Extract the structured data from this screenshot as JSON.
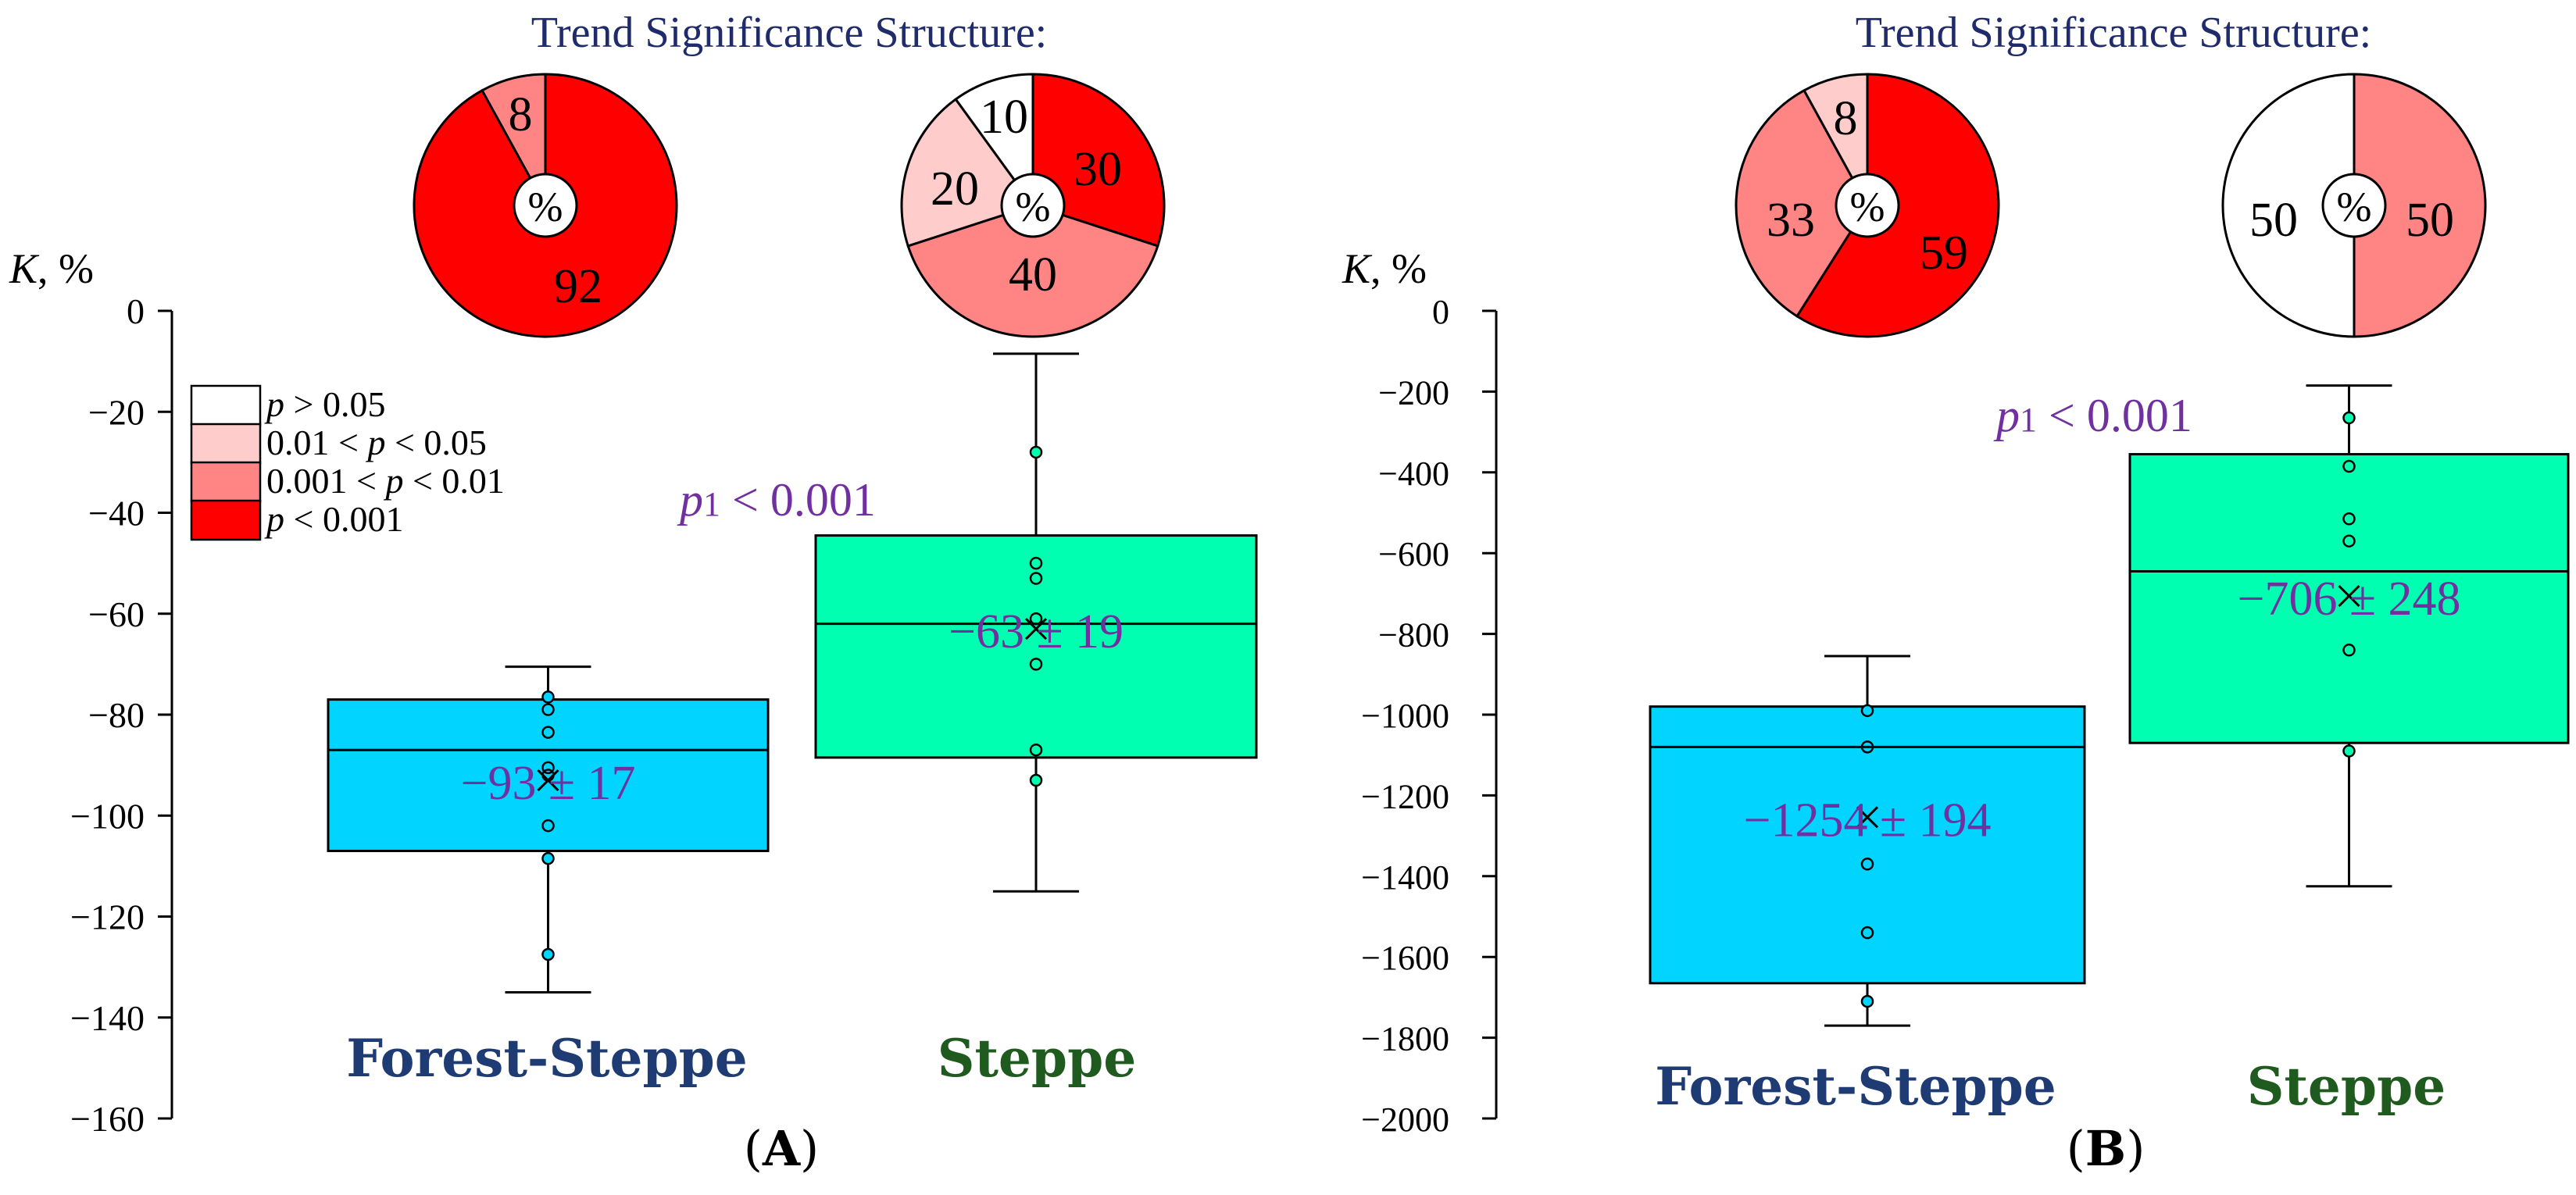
{
  "chart_data": [
    {
      "type": "boxplot",
      "panel_label_open": "(",
      "panel_label": "A",
      "panel_label_close": ")",
      "ylabel_var": "K",
      "ylabel_unit": ", %",
      "ylim": [
        -160,
        0
      ],
      "yticks": [
        0,
        -20,
        -40,
        -60,
        -80,
        -100,
        -120,
        -140,
        -160
      ],
      "ytick_labels": [
        "0",
        "−20",
        "−40",
        "−60",
        "−80",
        "−100",
        "−120",
        "−140",
        "−160"
      ],
      "categories": [
        "Forest-Steppe",
        "Steppe"
      ],
      "category_colors": [
        "#1f3b73",
        "#1f5a1f"
      ],
      "boxes": [
        {
          "name": "Forest-Steppe",
          "color": "#00d4ff",
          "whisker_low": -135,
          "q1": -107,
          "median": -87,
          "q3": -77,
          "whisker_high": -70.5,
          "mean": -93,
          "mean_label": "−93 ± 17",
          "points": [
            {
              "v": -76.5,
              "filled": true
            },
            {
              "v": -79,
              "filled": false
            },
            {
              "v": -83.5,
              "filled": false
            },
            {
              "v": -90.5,
              "filled": false
            },
            {
              "v": -92,
              "filled": false
            },
            {
              "v": -102,
              "filled": false
            },
            {
              "v": -108.5,
              "filled": true
            },
            {
              "v": -127.5,
              "filled": true
            }
          ]
        },
        {
          "name": "Steppe",
          "color": "#00ffb0",
          "whisker_low": -115,
          "q1": -88.5,
          "median": -62,
          "q3": -44.5,
          "whisker_high": -8.5,
          "mean": -63,
          "mean_label": "−63 ± 19",
          "points": [
            {
              "v": -28,
              "filled": true
            },
            {
              "v": -50,
              "filled": false
            },
            {
              "v": -53,
              "filled": false
            },
            {
              "v": -61,
              "filled": false
            },
            {
              "v": -70,
              "filled": false
            },
            {
              "v": -87,
              "filled": false
            },
            {
              "v": -93,
              "filled": true
            }
          ]
        }
      ],
      "p_annotation": {
        "p": "p",
        "sub": "1",
        "rest": " < 0.001"
      },
      "pie_title": "Trend Significance Structure:",
      "pies": [
        {
          "name": "Forest-Steppe",
          "center_label": "%",
          "slices": [
            {
              "level": "p < 0.001",
              "value": 92,
              "color": "#ff0000",
              "label": "92"
            },
            {
              "level": "0.001 < p < 0.01",
              "value": 8,
              "color": "#ff8585",
              "label": "8"
            }
          ]
        },
        {
          "name": "Steppe",
          "center_label": "%",
          "slices": [
            {
              "level": "p < 0.001",
              "value": 30,
              "color": "#ff0000",
              "label": "30"
            },
            {
              "level": "0.001 < p < 0.01",
              "value": 40,
              "color": "#ff8585",
              "label": "40"
            },
            {
              "level": "0.01 < p < 0.05",
              "value": 20,
              "color": "#ffcccc",
              "label": "20"
            },
            {
              "level": "p > 0.05",
              "value": 10,
              "color": "#ffffff",
              "label": "10"
            }
          ]
        }
      ],
      "legend": [
        {
          "color": "#ffffff",
          "parts": [
            {
              "t": "p",
              "i": true
            },
            {
              "t": " > 0.05",
              "i": false
            }
          ]
        },
        {
          "color": "#ffcccc",
          "parts": [
            {
              "t": "0.01 < ",
              "i": false
            },
            {
              "t": "p",
              "i": true
            },
            {
              "t": " < 0.05",
              "i": false
            }
          ]
        },
        {
          "color": "#ff8585",
          "parts": [
            {
              "t": "0.001 < ",
              "i": false
            },
            {
              "t": "p",
              "i": true
            },
            {
              "t": " < 0.01",
              "i": false
            }
          ]
        },
        {
          "color": "#ff0000",
          "parts": [
            {
              "t": "p",
              "i": true
            },
            {
              "t": " < 0.001",
              "i": false
            }
          ]
        }
      ]
    },
    {
      "type": "boxplot",
      "panel_label_open": "(",
      "panel_label": "B",
      "panel_label_close": ")",
      "ylabel_var": "K",
      "ylabel_unit": ", %",
      "ylim": [
        -2000,
        0
      ],
      "yticks": [
        0,
        -200,
        -400,
        -600,
        -800,
        -1000,
        -1200,
        -1400,
        -1600,
        -1800,
        -2000
      ],
      "ytick_labels": [
        "0",
        "−200",
        "−400",
        "−600",
        "−800",
        "−1000",
        "−1200",
        "−1400",
        "−1600",
        "−1800",
        "−2000"
      ],
      "categories": [
        "Forest-Steppe",
        "Steppe"
      ],
      "category_colors": [
        "#1f3b73",
        "#1f5a1f"
      ],
      "boxes": [
        {
          "name": "Forest-Steppe",
          "color": "#00d4ff",
          "whisker_low": -1770,
          "q1": -1665,
          "median": -1080,
          "q3": -980,
          "whisker_high": -855,
          "mean": -1254,
          "mean_label": "−1254 ± 194",
          "points": [
            {
              "v": -990,
              "filled": true
            },
            {
              "v": -1080,
              "filled": false
            },
            {
              "v": -1370,
              "filled": false
            },
            {
              "v": -1540,
              "filled": false
            },
            {
              "v": -1710,
              "filled": true
            }
          ]
        },
        {
          "name": "Steppe",
          "color": "#00ffb0",
          "whisker_low": -1425,
          "q1": -1070,
          "median": -645,
          "q3": -355,
          "whisker_high": -185,
          "mean": -706,
          "mean_label": "−706 ± 248",
          "points": [
            {
              "v": -265,
              "filled": true
            },
            {
              "v": -385,
              "filled": false
            },
            {
              "v": -515,
              "filled": false
            },
            {
              "v": -570,
              "filled": false
            },
            {
              "v": -840,
              "filled": false
            },
            {
              "v": -1090,
              "filled": true
            }
          ]
        }
      ],
      "p_annotation": {
        "p": "p",
        "sub": "1",
        "rest": " < 0.001"
      },
      "pie_title": "Trend Significance Structure:",
      "pies": [
        {
          "name": "Forest-Steppe",
          "center_label": "%",
          "slices": [
            {
              "level": "p < 0.001",
              "value": 59,
              "color": "#ff0000",
              "label": "59"
            },
            {
              "level": "0.001 < p < 0.01",
              "value": 33,
              "color": "#ff8585",
              "label": "33"
            },
            {
              "level": "0.01 < p < 0.05",
              "value": 8,
              "color": "#ffcccc",
              "label": "8"
            }
          ]
        },
        {
          "name": "Steppe",
          "center_label": "%",
          "slices": [
            {
              "level": "0.001 < p < 0.01",
              "value": 50,
              "color": "#ff8585",
              "label": "50"
            },
            {
              "level": "p > 0.05",
              "value": 50,
              "color": "#ffffff",
              "label": "50"
            }
          ]
        }
      ]
    }
  ]
}
